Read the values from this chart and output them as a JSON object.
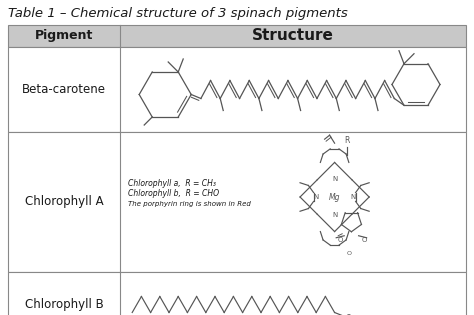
{
  "title": "Table 1 – Chemical structure of 3 spinach pigments",
  "title_fontsize": 9.5,
  "col_header_pigment": "Pigment",
  "col_header_structure": "Structure",
  "header_fontsize": 9,
  "rows": [
    "Beta-carotene",
    "Chlorophyll A",
    "Chlorophyll B"
  ],
  "row_fontsize": 8.5,
  "chlorophyll_text_line1": "Chlorophyll a,  R = CH₃",
  "chlorophyll_text_line2": "Chlorophyll b,  R = CHO",
  "chlorophyll_text_line3": "The porphyrin ring is shown in Red",
  "chlorophyll_text_fontsize": 5.5,
  "background_color": "#ffffff",
  "header_bg": "#c8c8c8",
  "border_color": "#888888",
  "text_color": "#1a1a1a",
  "fig_width": 4.74,
  "fig_height": 3.15,
  "dpi": 100
}
